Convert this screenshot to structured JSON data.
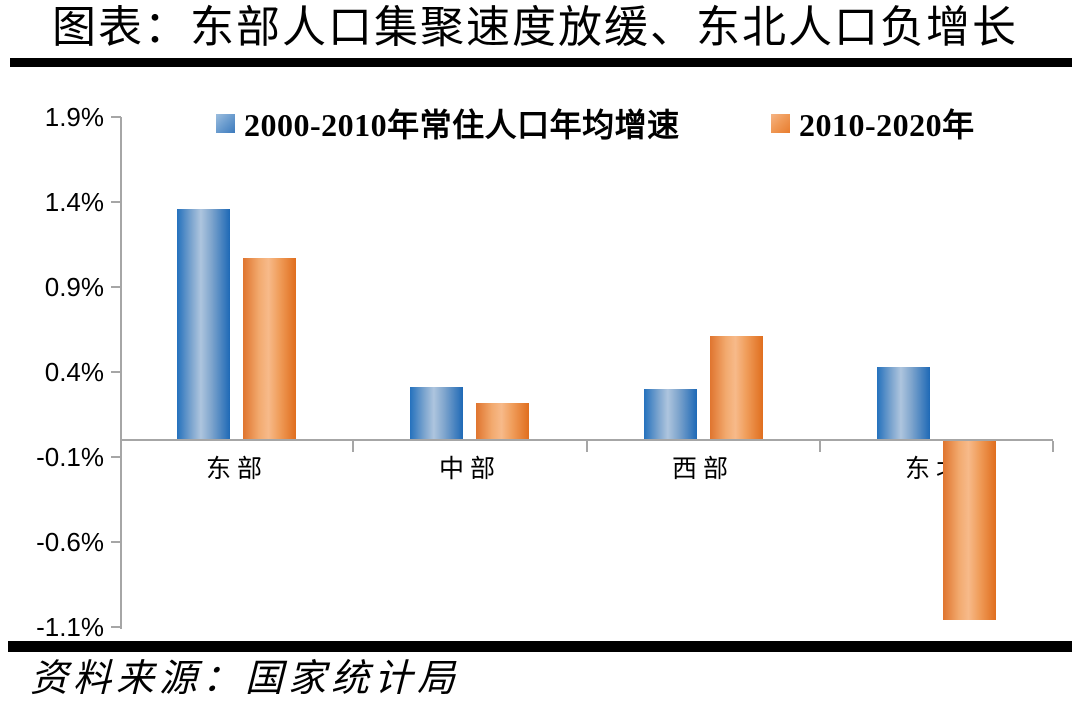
{
  "page": {
    "title": "图表：东部人口集聚速度放缓、东北人口负增长",
    "source": "资料来源：国家统计局"
  },
  "chart_data": {
    "type": "bar",
    "title": "图表：东部人口集聚速度放缓、东北人口负增长",
    "categories": [
      "东部",
      "中部",
      "西部",
      "东北"
    ],
    "series": [
      {
        "name": "2000-2010年常住人口年均增速",
        "color": "#2E75B6",
        "values": [
          1.36,
          0.31,
          0.3,
          0.43
        ]
      },
      {
        "name": "2010-2020年",
        "color": "#ED7D31",
        "values": [
          1.07,
          0.22,
          0.61,
          -1.06
        ]
      }
    ],
    "xlabel": "",
    "ylabel": "",
    "ylim": [
      -1.1,
      1.9
    ],
    "ytick_values": [
      1.9,
      1.4,
      0.9,
      0.4,
      -0.1,
      -0.6,
      -1.1
    ],
    "ytick_labels": [
      "1.9%",
      "1.4%",
      "0.9%",
      "0.4%",
      "-0.1%",
      "-0.6%",
      "-1.1%"
    ],
    "grid": false,
    "legend_position": "top",
    "axis_color": "#a6a6a6",
    "source_note": "资料来源：国家统计局"
  }
}
